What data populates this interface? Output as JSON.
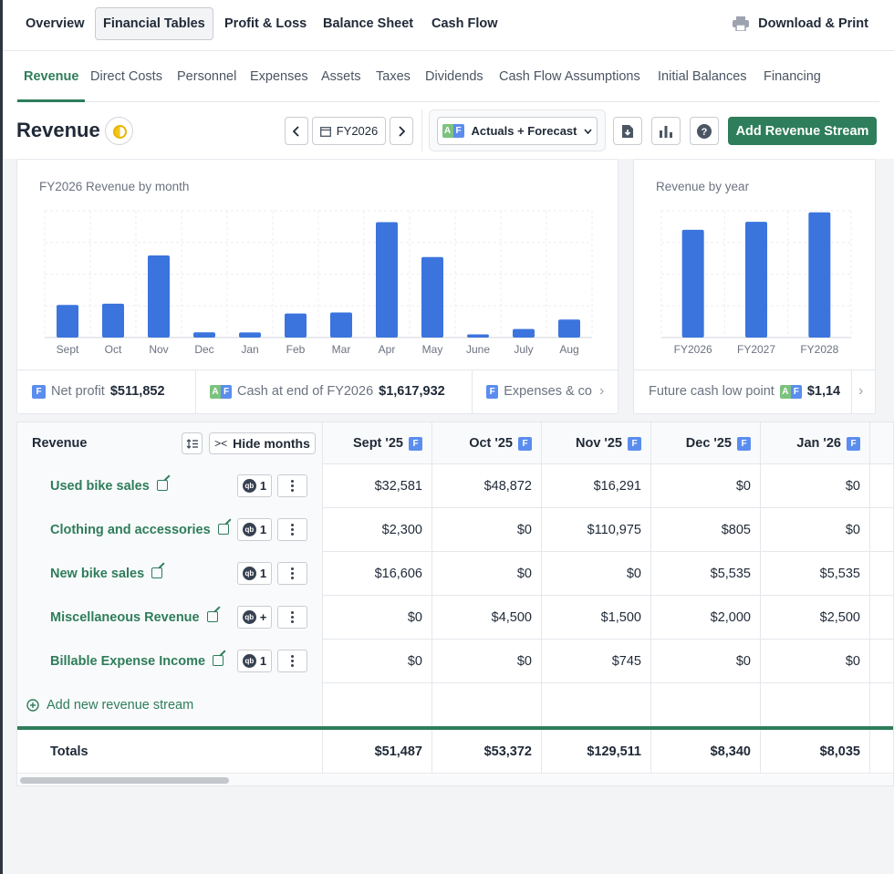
{
  "top_nav": {
    "tabs": [
      {
        "label": "Overview",
        "active": false
      },
      {
        "label": "Financial Tables",
        "active": true
      },
      {
        "label": "Profit & Loss",
        "active": false
      },
      {
        "label": "Balance Sheet",
        "active": false
      },
      {
        "label": "Cash Flow",
        "active": false
      }
    ],
    "download_label": "Download & Print"
  },
  "sub_nav": {
    "tabs": [
      "Revenue",
      "Direct Costs",
      "Personnel",
      "Expenses",
      "Assets",
      "Taxes",
      "Dividends",
      "Cash Flow Assumptions",
      "Initial Balances",
      "Financing"
    ],
    "active": "Revenue"
  },
  "header": {
    "title": "Revenue",
    "fiscal_year": "FY2026",
    "view_mode": "Actuals + Forecast",
    "add_button": "Add Revenue Stream"
  },
  "badges": {
    "actual": "A",
    "forecast": "F"
  },
  "monthly_chart": {
    "title": "FY2026 Revenue by month",
    "chart_data": {
      "type": "bar",
      "categories": [
        "Sept",
        "Oct",
        "Nov",
        "Dec",
        "Jan",
        "Feb",
        "Mar",
        "Apr",
        "May",
        "June",
        "July",
        "Aug"
      ],
      "values": [
        51487,
        53372,
        129511,
        8340,
        8035,
        38000,
        39500,
        182000,
        127000,
        5000,
        13500,
        28500
      ],
      "ylim": [
        0,
        200000
      ],
      "grid": true,
      "color": "#3b74dd"
    }
  },
  "yearly_chart": {
    "title": "Revenue by year",
    "chart_data": {
      "type": "bar",
      "categories": [
        "FY2026",
        "FY2027",
        "FY2028"
      ],
      "values": [
        680000,
        730000,
        790000
      ],
      "ylim": [
        0,
        800000
      ],
      "grid": true,
      "color": "#3b74dd"
    }
  },
  "metrics": {
    "net_profit": {
      "label": "Net profit",
      "value": "$511,852"
    },
    "cash_end": {
      "label": "Cash at end of FY2026",
      "value": "$1,617,932"
    },
    "expenses": {
      "label": "Expenses & co"
    },
    "future_cash": {
      "label": "Future cash low point",
      "value": "$1,14"
    }
  },
  "table": {
    "name_header": "Revenue",
    "hide_months": "Hide months",
    "columns": [
      "Sept '25",
      "Oct '25",
      "Nov '25",
      "Dec '25",
      "Jan '26"
    ],
    "rows": [
      {
        "name": "Used bike sales",
        "link": "1",
        "values": [
          "$32,581",
          "$48,872",
          "$16,291",
          "$0",
          "$0"
        ]
      },
      {
        "name": "Clothing and accessories",
        "link": "1",
        "values": [
          "$2,300",
          "$0",
          "$110,975",
          "$805",
          "$0"
        ]
      },
      {
        "name": "New bike sales",
        "link": "1",
        "values": [
          "$16,606",
          "$0",
          "$0",
          "$5,535",
          "$5,535"
        ]
      },
      {
        "name": "Miscellaneous Revenue",
        "link": "+",
        "values": [
          "$0",
          "$4,500",
          "$1,500",
          "$2,000",
          "$2,500"
        ]
      },
      {
        "name": "Billable Expense Income",
        "link": "1",
        "values": [
          "$0",
          "$0",
          "$745",
          "$0",
          "$0"
        ]
      }
    ],
    "add_stream": "Add new revenue stream",
    "totals_label": "Totals",
    "totals": [
      "$51,487",
      "$53,372",
      "$129,511",
      "$8,340",
      "$8,035"
    ]
  }
}
